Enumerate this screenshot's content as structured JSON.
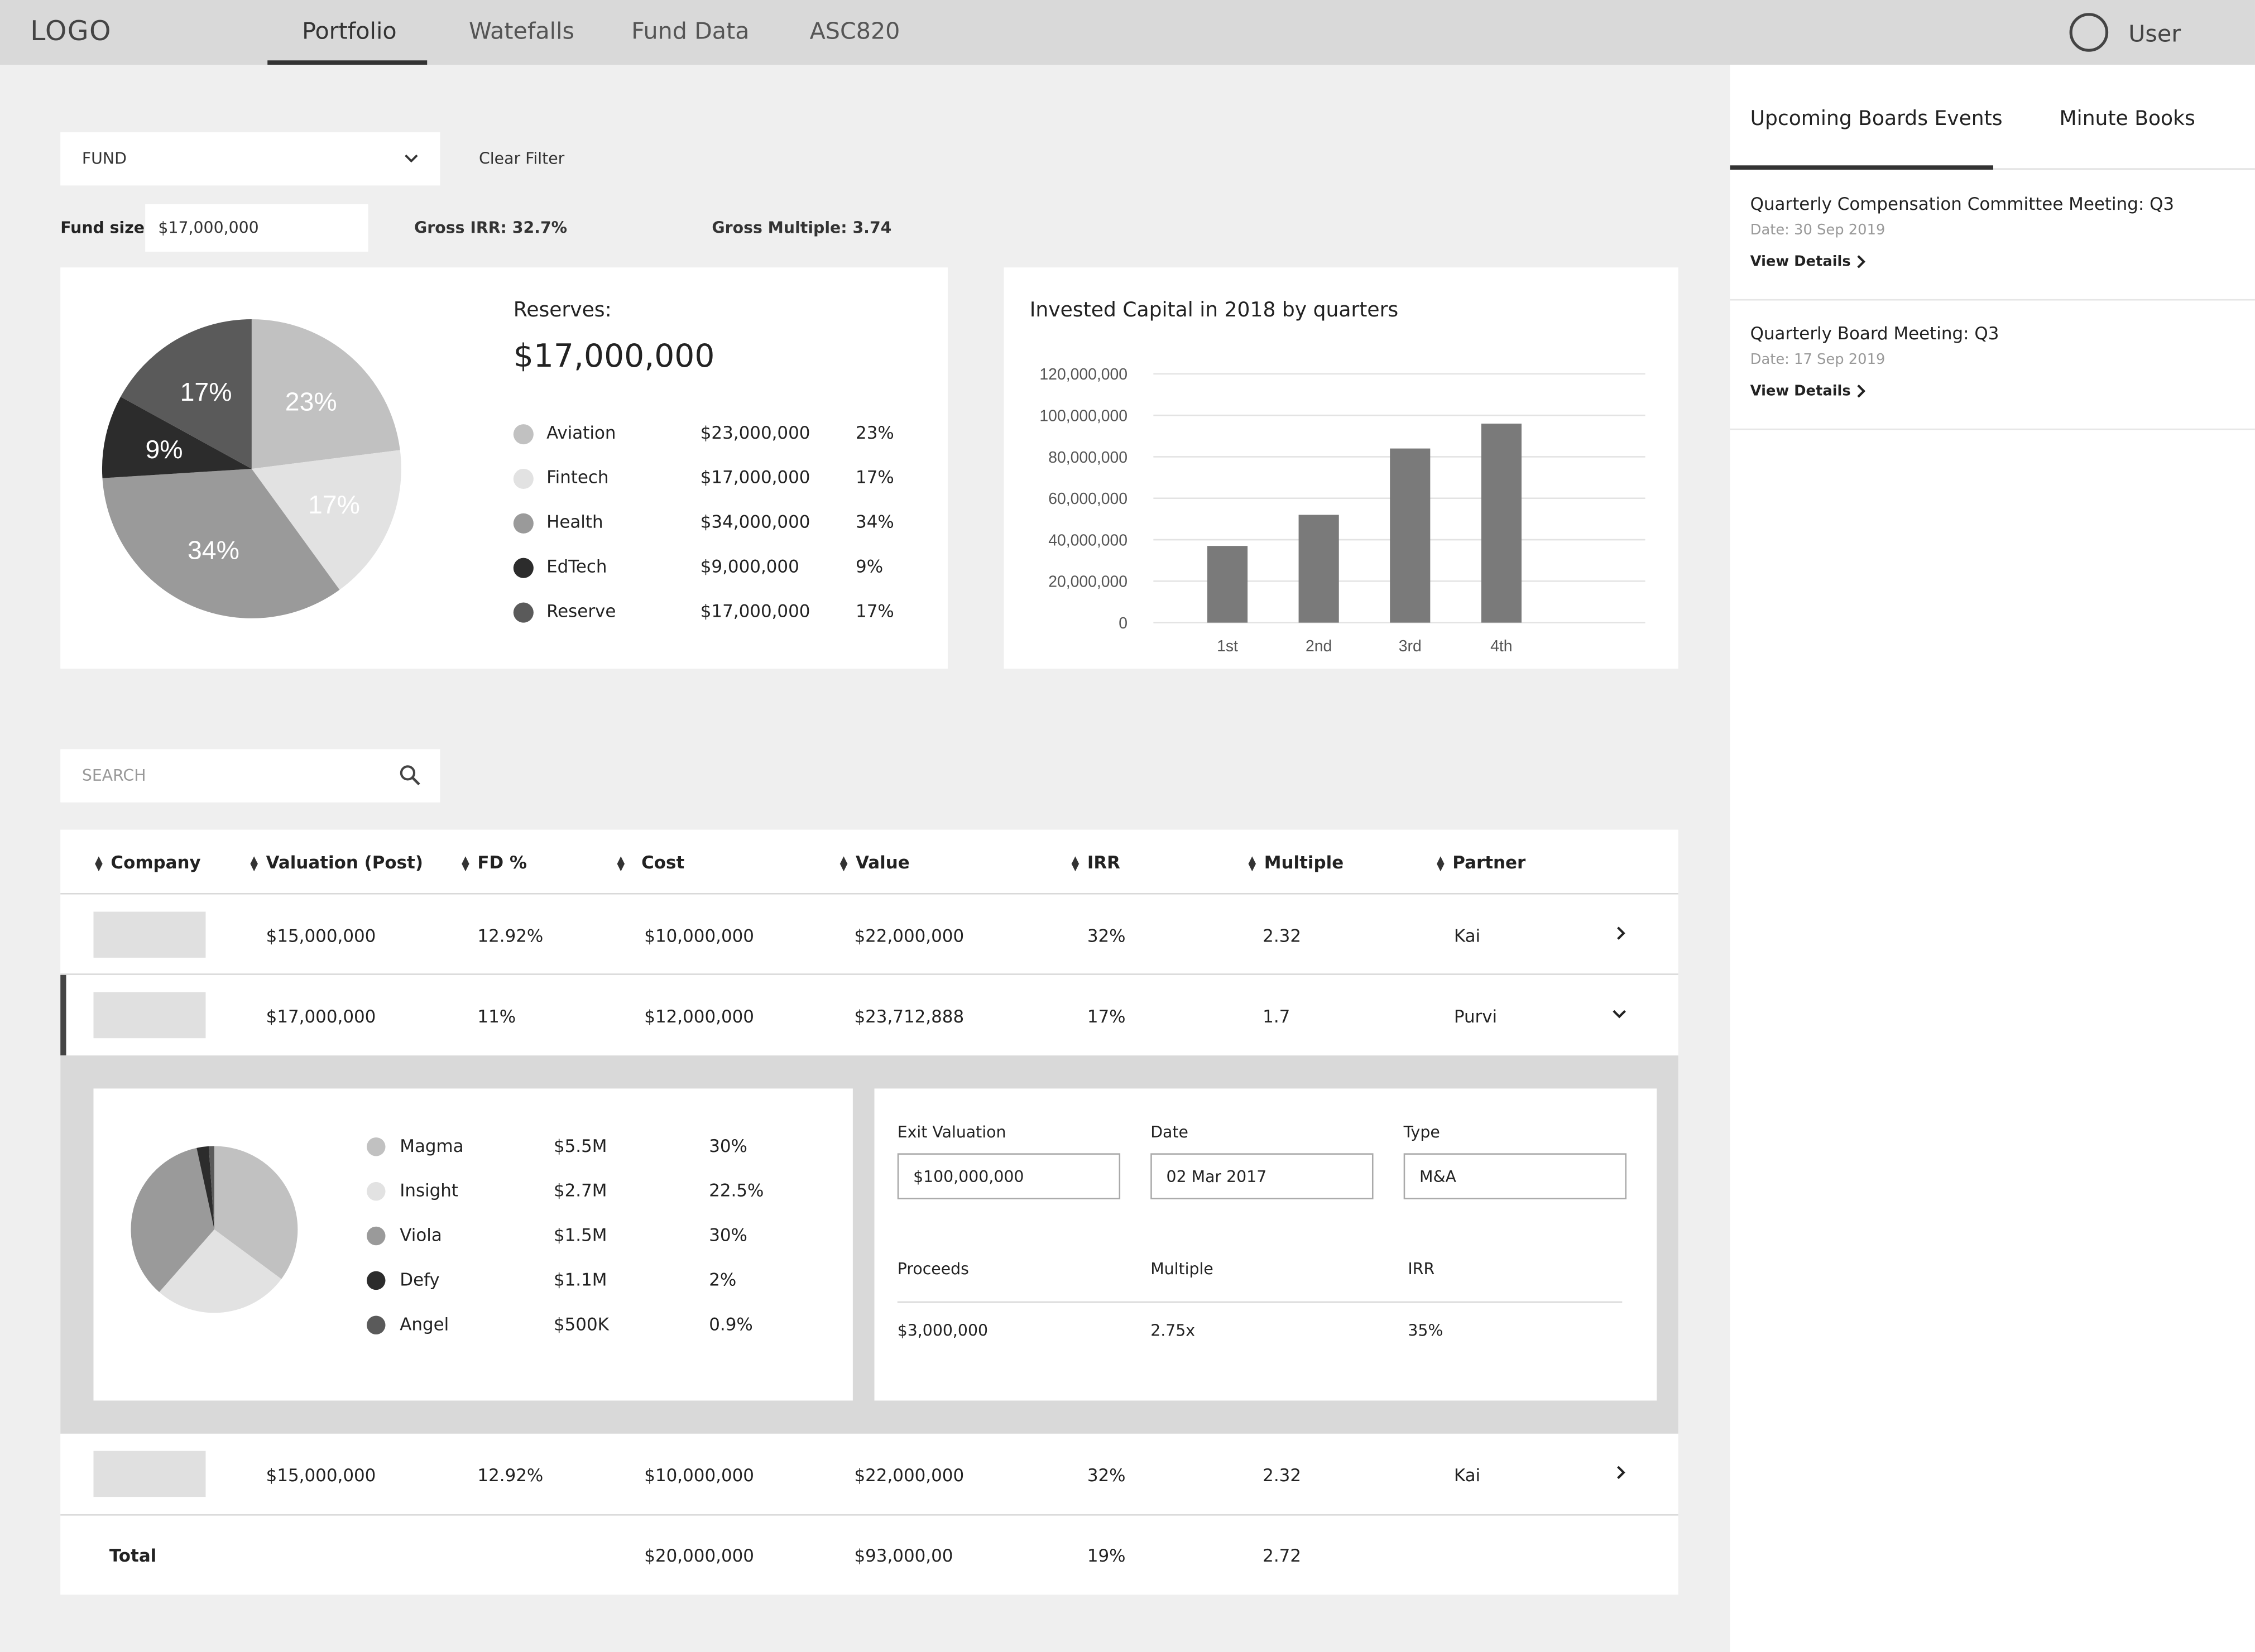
{
  "nav": {
    "logo": "LOGO",
    "tabs": [
      {
        "label": "Portfolio"
      },
      {
        "label": "Watefalls"
      },
      {
        "label": "Fund Data"
      },
      {
        "label": "ASC820"
      }
    ],
    "user_label": "User"
  },
  "filters": {
    "fund_select": "FUND",
    "clear_filter": "Clear Filter",
    "fund_size_label": "Fund size:",
    "fund_size_value": "$17,000,000",
    "gross_irr": "Gross IRR: 32.7%",
    "gross_multiple": "Gross Multiple: 3.74"
  },
  "reserves": {
    "label": "Reserves:",
    "amount": "$17,000,000",
    "items": [
      {
        "name": "Aviation",
        "amount": "$23,000,000",
        "pct": "23%",
        "color": "#c1c1c1"
      },
      {
        "name": "Fintech",
        "amount": "$17,000,000",
        "pct": "17%",
        "color": "#e2e2e2"
      },
      {
        "name": "Health",
        "amount": "$34,000,000",
        "pct": "34%",
        "color": "#9a9a9a"
      },
      {
        "name": "EdTech",
        "amount": "$9,000,000",
        "pct": "9%",
        "color": "#2c2c2c"
      },
      {
        "name": "Reserve",
        "amount": "$17,000,000",
        "pct": "17%",
        "color": "#5a5a5a"
      }
    ]
  },
  "chart_data": [
    {
      "type": "pie",
      "labels": [
        "Aviation",
        "Fintech",
        "Health",
        "EdTech",
        "Reserve"
      ],
      "values": [
        23,
        17,
        34,
        9,
        17
      ],
      "slice_labels": [
        "23%",
        "17%",
        "34%",
        "9%",
        "17%"
      ],
      "colors": [
        "#c1c1c1",
        "#e2e2e2",
        "#9a9a9a",
        "#2c2c2c",
        "#5a5a5a"
      ]
    },
    {
      "type": "bar",
      "title": "Invested Capital in 2018 by quarters",
      "categories": [
        "1st",
        "2nd",
        "3rd",
        "4th"
      ],
      "values": [
        37000000,
        52000000,
        84000000,
        96000000
      ],
      "yticks": [
        "0",
        "20,000,000",
        "40,000,000",
        "60,000,000",
        "80,000,000",
        "100,000,000",
        "120,000,000"
      ],
      "ylim": [
        0,
        120000000
      ],
      "grid": true,
      "color": "#7a7a7a"
    },
    {
      "type": "pie",
      "labels": [
        "Magma",
        "Insight",
        "Viola",
        "Defy",
        "Angel"
      ],
      "values": [
        30,
        22.5,
        30,
        2,
        0.9
      ],
      "colors": [
        "#c1c1c1",
        "#e2e2e2",
        "#9a9a9a",
        "#2c2c2c",
        "#5a5a5a"
      ]
    }
  ],
  "search": {
    "placeholder": "SEARCH"
  },
  "table": {
    "headers": [
      "Company",
      "Valuation (Post)",
      "FD %",
      "Cost",
      "Value",
      "IRR",
      "Multiple",
      "Partner"
    ],
    "rows": [
      {
        "valuation": "$15,000,000",
        "fd": "12.92%",
        "cost": "$10,000,000",
        "value": "$22,000,000",
        "irr": "32%",
        "multiple": "2.32",
        "partner": "Kai"
      },
      {
        "valuation": "$17,000,000",
        "fd": "11%",
        "cost": "$12,000,000",
        "value": "$23,712,888",
        "irr": "17%",
        "multiple": "1.7",
        "partner": "Purvi"
      },
      {
        "valuation": "$15,000,000",
        "fd": "12.92%",
        "cost": "$10,000,000",
        "value": "$22,000,000",
        "irr": "32%",
        "multiple": "2.32",
        "partner": "Kai"
      }
    ],
    "total": {
      "label": "Total",
      "cost": "$20,000,000",
      "value": "$93,000,00",
      "irr": "19%",
      "multiple": "2.72"
    }
  },
  "expanded": {
    "investors": [
      {
        "name": "Magma",
        "amount": "$5.5M",
        "pct": "30%",
        "color": "#c1c1c1"
      },
      {
        "name": "Insight",
        "amount": "$2.7M",
        "pct": "22.5%",
        "color": "#e2e2e2"
      },
      {
        "name": "Viola",
        "amount": "$1.5M",
        "pct": "30%",
        "color": "#9a9a9a"
      },
      {
        "name": "Defy",
        "amount": "$1.1M",
        "pct": "2%",
        "color": "#2c2c2c"
      },
      {
        "name": "Angel",
        "amount": "$500K",
        "pct": "0.9%",
        "color": "#5a5a5a"
      }
    ],
    "exit_valuation_label": "Exit Valuation",
    "exit_valuation_value": "$100,000,000",
    "date_label": "Date",
    "date_value": "02 Mar 2017",
    "type_label": "Type",
    "type_value": "M&A",
    "proceeds_label": "Proceeds",
    "proceeds_value": "$3,000,000",
    "multiple_label": "Multiple",
    "multiple_value": "2.75x",
    "irr_label": "IRR",
    "irr_value": "35%"
  },
  "panel": {
    "tabs": [
      "Upcoming Boards Events",
      "Minute Books"
    ],
    "events": [
      {
        "title": "Quarterly Compensation Committee Meeting: Q3",
        "date": "Date: 30 Sep 2019",
        "link": "View Details"
      },
      {
        "title": "Quarterly Board Meeting: Q3",
        "date": "Date: 17 Sep 2019",
        "link": "View Details"
      }
    ]
  }
}
